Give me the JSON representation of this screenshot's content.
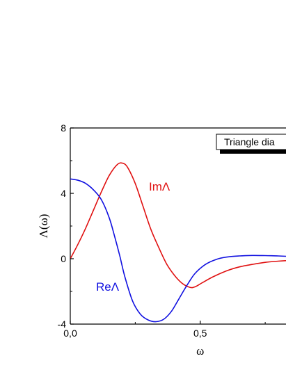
{
  "chart_data": {
    "type": "line",
    "title": "",
    "xlabel": "ω",
    "ylabel": "Λ(ω)",
    "xlim": [
      0.0,
      0.83
    ],
    "ylim": [
      -4,
      8
    ],
    "x_ticks": [
      0.0,
      0.5
    ],
    "x_tick_labels": [
      "0,0",
      "0,5"
    ],
    "y_ticks": [
      -4,
      0,
      4,
      8
    ],
    "y_tick_labels": [
      "-4",
      "0",
      "4",
      "8"
    ],
    "grid": false,
    "legend": {
      "position": "top-right",
      "entries": [
        "Triangle dia"
      ]
    },
    "annotations": [
      {
        "text": "ImΛ",
        "color": "#e01010"
      },
      {
        "text": "ReΛ",
        "color": "#1010e0"
      }
    ],
    "series": [
      {
        "name": "ImΛ",
        "color": "#e01010",
        "x": [
          0.0,
          0.03,
          0.06,
          0.09,
          0.12,
          0.15,
          0.18,
          0.2,
          0.22,
          0.25,
          0.28,
          0.31,
          0.34,
          0.37,
          0.4,
          0.43,
          0.46,
          0.48,
          0.51,
          0.55,
          0.6,
          0.65,
          0.7,
          0.75,
          0.8,
          0.83
        ],
        "y": [
          0.0,
          0.9,
          1.9,
          3.0,
          4.1,
          5.1,
          5.75,
          5.85,
          5.6,
          4.6,
          3.2,
          1.8,
          0.7,
          -0.3,
          -1.0,
          -1.5,
          -1.75,
          -1.72,
          -1.45,
          -1.1,
          -0.75,
          -0.5,
          -0.35,
          -0.22,
          -0.15,
          -0.12
        ]
      },
      {
        "name": "ReΛ",
        "color": "#1010e0",
        "x": [
          0.0,
          0.03,
          0.06,
          0.09,
          0.12,
          0.15,
          0.17,
          0.19,
          0.21,
          0.24,
          0.27,
          0.3,
          0.33,
          0.36,
          0.39,
          0.42,
          0.45,
          0.48,
          0.52,
          0.56,
          0.6,
          0.65,
          0.7,
          0.75,
          0.8,
          0.83
        ],
        "y": [
          4.88,
          4.8,
          4.6,
          4.2,
          3.6,
          2.5,
          1.4,
          0.2,
          -1.1,
          -2.6,
          -3.4,
          -3.75,
          -3.85,
          -3.7,
          -3.2,
          -2.4,
          -1.6,
          -0.9,
          -0.35,
          -0.05,
          0.1,
          0.17,
          0.2,
          0.19,
          0.17,
          0.15
        ]
      }
    ]
  }
}
